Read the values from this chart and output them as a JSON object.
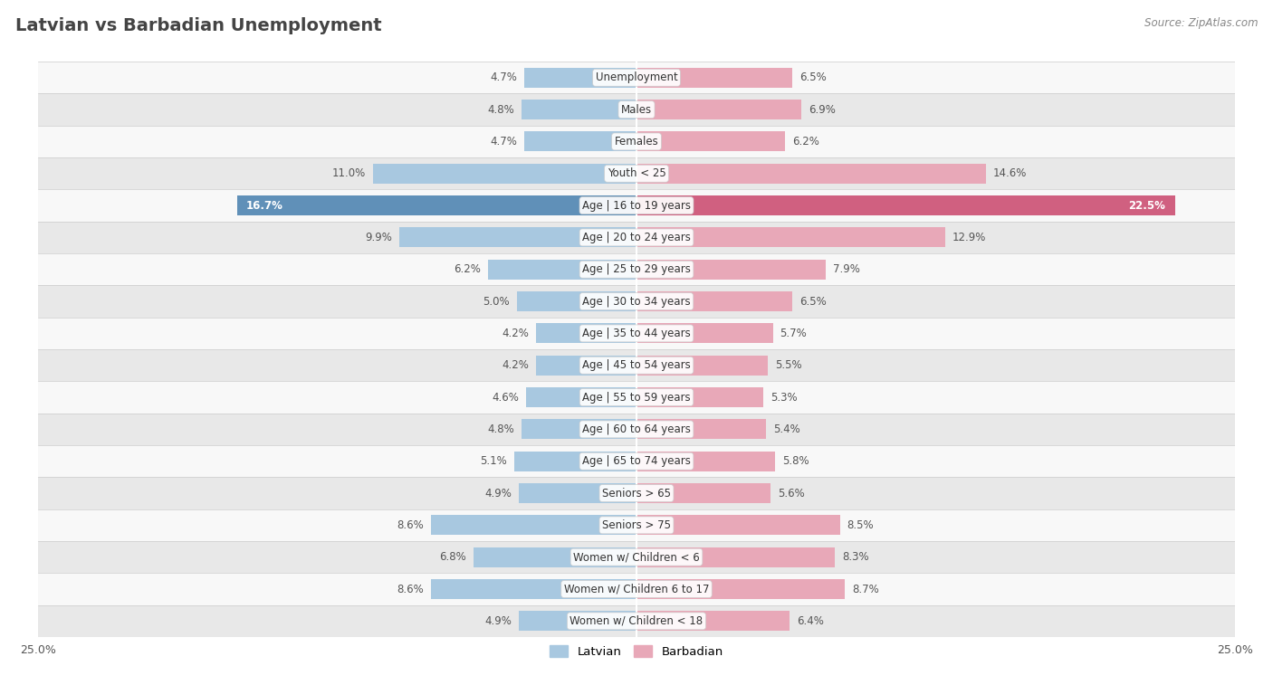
{
  "title": "Latvian vs Barbadian Unemployment",
  "source": "Source: ZipAtlas.com",
  "categories": [
    "Unemployment",
    "Males",
    "Females",
    "Youth < 25",
    "Age | 16 to 19 years",
    "Age | 20 to 24 years",
    "Age | 25 to 29 years",
    "Age | 30 to 34 years",
    "Age | 35 to 44 years",
    "Age | 45 to 54 years",
    "Age | 55 to 59 years",
    "Age | 60 to 64 years",
    "Age | 65 to 74 years",
    "Seniors > 65",
    "Seniors > 75",
    "Women w/ Children < 6",
    "Women w/ Children 6 to 17",
    "Women w/ Children < 18"
  ],
  "latvian": [
    4.7,
    4.8,
    4.7,
    11.0,
    16.7,
    9.9,
    6.2,
    5.0,
    4.2,
    4.2,
    4.6,
    4.8,
    5.1,
    4.9,
    8.6,
    6.8,
    8.6,
    4.9
  ],
  "barbadian": [
    6.5,
    6.9,
    6.2,
    14.6,
    22.5,
    12.9,
    7.9,
    6.5,
    5.7,
    5.5,
    5.3,
    5.4,
    5.8,
    5.6,
    8.5,
    8.3,
    8.7,
    6.4
  ],
  "latvian_color": "#a8c8e0",
  "barbadian_color": "#e8a8b8",
  "latvian_highlight": "#6090b8",
  "barbadian_highlight": "#d06080",
  "highlight_row": "Age | 16 to 19 years",
  "xlim": 25.0,
  "bar_height": 0.62,
  "bg_color": "#f0f0f0",
  "row_bg_odd": "#f8f8f8",
  "row_bg_even": "#e8e8e8",
  "label_color": "#555555",
  "highlight_label_color": "#ffffff",
  "title_color": "#444444",
  "source_color": "#888888",
  "legend_latvian": "Latvian",
  "legend_barbadian": "Barbadian"
}
